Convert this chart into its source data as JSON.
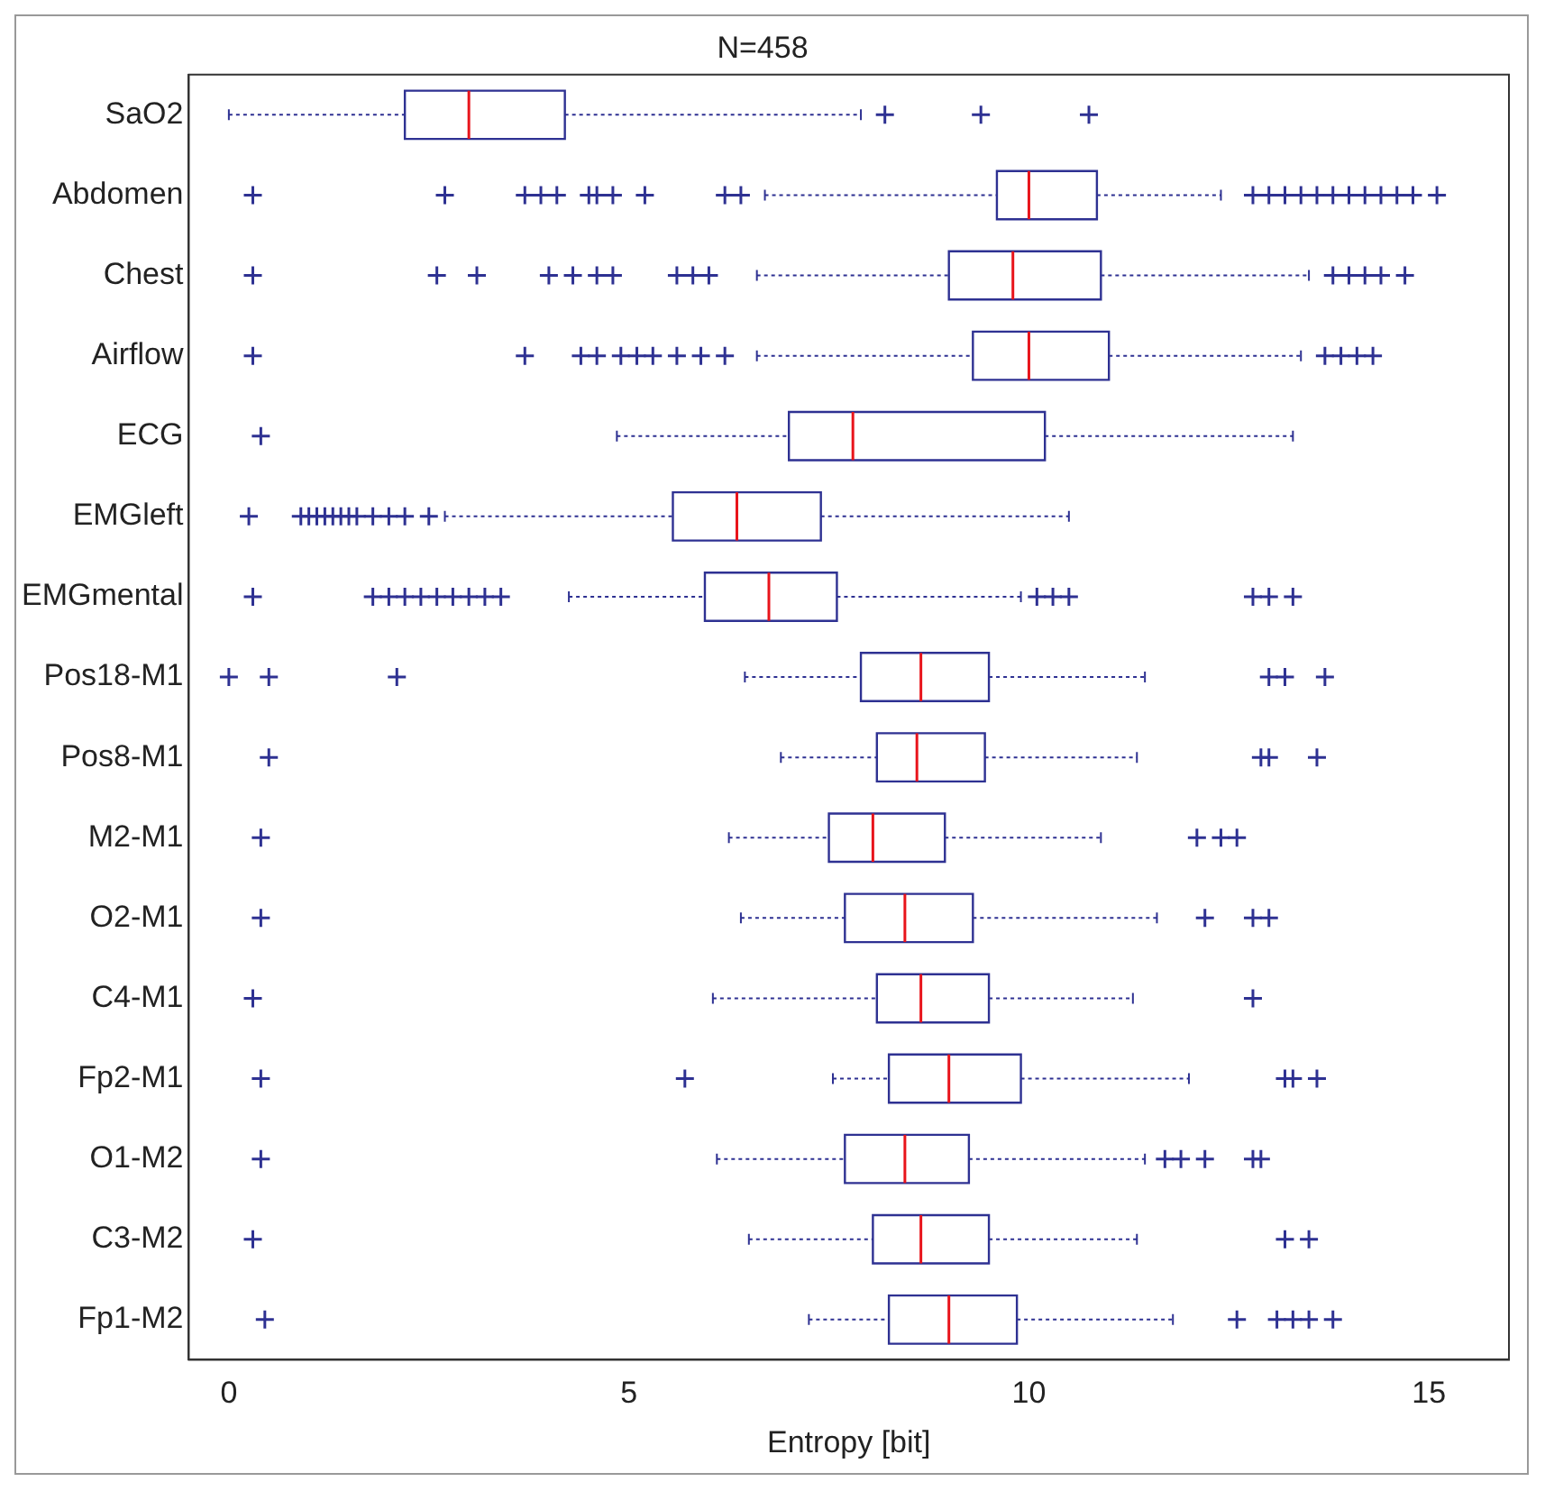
{
  "chart_data": {
    "type": "box",
    "orientation": "horizontal",
    "title": "N=458",
    "xlabel": "Entropy [bit]",
    "color": "#2e3192",
    "marker": "cross",
    "legend": false,
    "grid": false,
    "categories": [
      "SaO2",
      "Abdomen",
      "Chest",
      "Airflow",
      "ECG",
      "EMGleft",
      "EMGmental",
      "Pos18-M1",
      "Pos8-M1",
      "M2-M1",
      "O2-M1",
      "C4-M1",
      "Fp2-M1",
      "O1-M2",
      "C3-M2",
      "Fp1-M2"
    ],
    "xlim": [
      -0.5,
      16
    ],
    "xticks": [
      0,
      5,
      10,
      15
    ],
    "boxes": [
      {
        "low": 0.0,
        "q1": 2.2,
        "median": 3.0,
        "q3": 4.2,
        "high": 7.9,
        "outliers": [
          8.2,
          9.4,
          10.75
        ]
      },
      {
        "low": 6.7,
        "q1": 9.6,
        "median": 10.0,
        "q3": 10.85,
        "high": 12.4,
        "outliers": [
          0.3,
          2.7,
          3.7,
          3.9,
          4.1,
          4.5,
          4.6,
          4.8,
          5.2,
          6.2,
          6.4,
          12.8,
          13.0,
          13.2,
          13.4,
          13.6,
          13.8,
          14.0,
          14.2,
          14.4,
          14.6,
          14.8,
          15.1
        ]
      },
      {
        "low": 6.6,
        "q1": 9.0,
        "median": 9.8,
        "q3": 10.9,
        "high": 13.5,
        "outliers": [
          0.3,
          2.6,
          3.1,
          4.0,
          4.3,
          4.6,
          4.8,
          5.6,
          5.8,
          6.0,
          13.8,
          14.0,
          14.2,
          14.4,
          14.7
        ]
      },
      {
        "low": 6.6,
        "q1": 9.3,
        "median": 10.0,
        "q3": 11.0,
        "high": 13.4,
        "outliers": [
          0.3,
          3.7,
          4.4,
          4.6,
          4.9,
          5.1,
          5.3,
          5.6,
          5.9,
          6.2,
          13.7,
          13.9,
          14.1,
          14.3
        ]
      },
      {
        "low": 4.85,
        "q1": 7.0,
        "median": 7.8,
        "q3": 10.2,
        "high": 13.3,
        "outliers": [
          0.4
        ]
      },
      {
        "low": 2.7,
        "q1": 5.55,
        "median": 6.35,
        "q3": 7.4,
        "high": 10.5,
        "outliers": [
          0.25,
          0.9,
          1.0,
          1.1,
          1.2,
          1.3,
          1.4,
          1.5,
          1.6,
          1.8,
          2.0,
          2.2,
          2.5
        ]
      },
      {
        "low": 4.25,
        "q1": 5.95,
        "median": 6.75,
        "q3": 7.6,
        "high": 9.9,
        "outliers": [
          0.3,
          1.8,
          2.0,
          2.2,
          2.4,
          2.6,
          2.8,
          3.0,
          3.2,
          3.4,
          10.1,
          10.3,
          10.5,
          12.8,
          13.0,
          13.3
        ]
      },
      {
        "low": 6.45,
        "q1": 7.9,
        "median": 8.65,
        "q3": 9.5,
        "high": 11.45,
        "outliers": [
          0.0,
          0.5,
          2.1,
          13.0,
          13.2,
          13.7
        ]
      },
      {
        "low": 6.9,
        "q1": 8.1,
        "median": 8.6,
        "q3": 9.45,
        "high": 11.35,
        "outliers": [
          0.5,
          12.9,
          13.0,
          13.6
        ]
      },
      {
        "low": 6.25,
        "q1": 7.5,
        "median": 8.05,
        "q3": 8.95,
        "high": 10.9,
        "outliers": [
          0.4,
          12.1,
          12.4,
          12.6
        ]
      },
      {
        "low": 6.4,
        "q1": 7.7,
        "median": 8.45,
        "q3": 9.3,
        "high": 11.6,
        "outliers": [
          0.4,
          12.2,
          12.8,
          13.0
        ]
      },
      {
        "low": 6.05,
        "q1": 8.1,
        "median": 8.65,
        "q3": 9.5,
        "high": 11.3,
        "outliers": [
          0.3,
          12.8
        ]
      },
      {
        "low": 7.55,
        "q1": 8.25,
        "median": 9.0,
        "q3": 9.9,
        "high": 12.0,
        "outliers": [
          0.4,
          5.7,
          13.2,
          13.3,
          13.6
        ]
      },
      {
        "low": 6.1,
        "q1": 7.7,
        "median": 8.45,
        "q3": 9.25,
        "high": 11.45,
        "outliers": [
          0.4,
          11.7,
          11.9,
          12.2,
          12.8,
          12.9
        ]
      },
      {
        "low": 6.5,
        "q1": 8.05,
        "median": 8.65,
        "q3": 9.5,
        "high": 11.35,
        "outliers": [
          0.3,
          13.2,
          13.5
        ]
      },
      {
        "low": 7.25,
        "q1": 8.25,
        "median": 9.0,
        "q3": 9.85,
        "high": 11.8,
        "outliers": [
          0.45,
          12.6,
          13.1,
          13.3,
          13.5,
          13.8
        ]
      }
    ]
  }
}
